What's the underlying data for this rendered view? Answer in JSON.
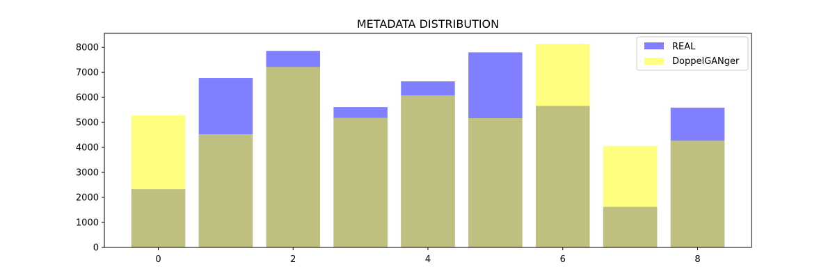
{
  "chart_data": {
    "type": "bar",
    "title": "METADATA DISTRIBUTION",
    "xlabel": "",
    "ylabel": "",
    "categories": [
      0,
      1,
      2,
      3,
      4,
      5,
      6,
      7,
      8
    ],
    "x_ticks": [
      0,
      2,
      4,
      6,
      8
    ],
    "y_ticks": [
      0,
      1000,
      2000,
      3000,
      4000,
      5000,
      6000,
      7000,
      8000
    ],
    "xlim": [
      -0.8,
      8.8
    ],
    "ylim": [
      0,
      8560
    ],
    "grid": false,
    "legend_position": "top-right",
    "series": [
      {
        "name": "REAL",
        "color": "#8080ff",
        "values": [
          2330,
          6780,
          7860,
          5610,
          6640,
          7800,
          5660,
          1620,
          5590
        ]
      },
      {
        "name": "DoppelGANger",
        "color": "#ffff80",
        "values": [
          5280,
          4530,
          7220,
          5180,
          6080,
          5170,
          8140,
          4050,
          4270
        ]
      }
    ]
  }
}
